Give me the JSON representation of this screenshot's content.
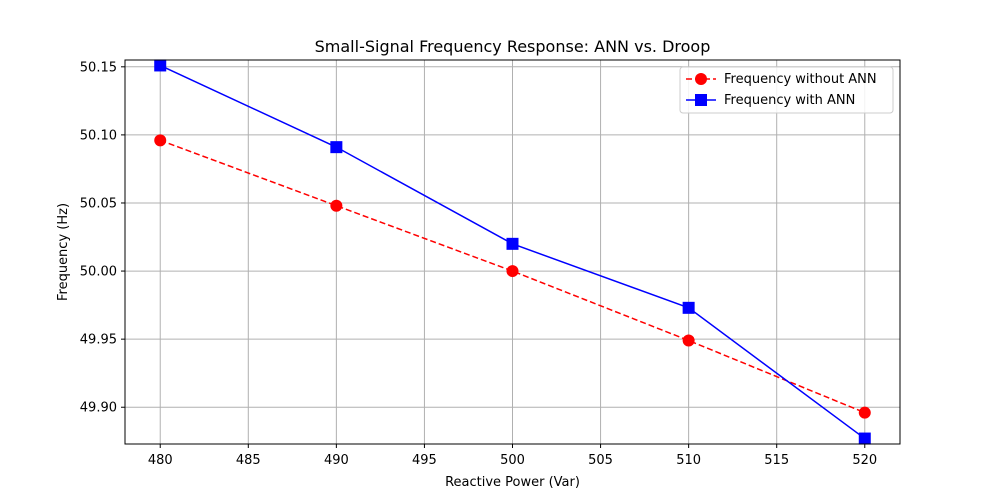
{
  "chart_data": {
    "type": "line",
    "title": "Small-Signal Frequency Response: ANN vs. Droop",
    "xlabel": "Reactive Power (Var)",
    "ylabel": "Frequency (Hz)",
    "x": [
      480,
      490,
      500,
      510,
      520
    ],
    "xlim": [
      478,
      522
    ],
    "ylim": [
      49.873,
      50.155
    ],
    "xticks": [
      480,
      485,
      490,
      495,
      500,
      505,
      510,
      515,
      520
    ],
    "yticks": [
      49.9,
      49.95,
      50.0,
      50.05,
      50.1,
      50.15
    ],
    "grid": true,
    "legend_position": "upper right",
    "series": [
      {
        "name": "Frequency without ANN",
        "values": [
          50.096,
          50.048,
          50.0,
          49.949,
          49.896
        ],
        "color": "#ff0000",
        "line_style": "dashed",
        "marker": "circle"
      },
      {
        "name": "Frequency with ANN",
        "values": [
          50.151,
          50.091,
          50.02,
          49.973,
          49.877
        ],
        "color": "#0000ff",
        "line_style": "solid",
        "marker": "square"
      }
    ]
  }
}
